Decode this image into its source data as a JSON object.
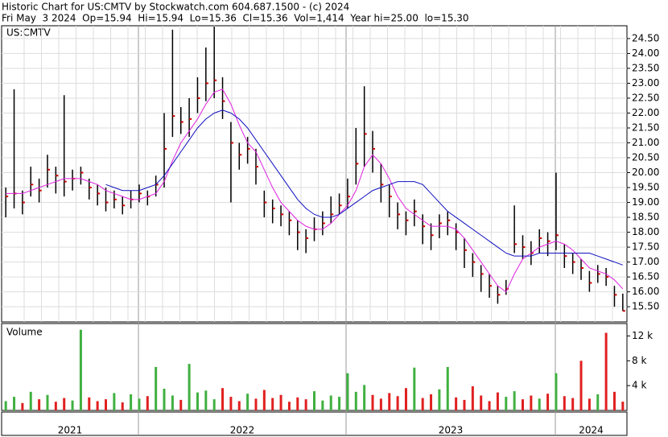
{
  "chart_data": {
    "type": "ohlc",
    "title": "Historic Chart for US:CMTV by Stockwatch.com 604.687.1500 - (c) 2024",
    "subtitle": "Fri May  3 2024  Op=15.94  Hi=15.94  Lo=15.36  Cl=15.36  Vol=1,414  Year hi=25.00  lo=15.30",
    "symbol_label": "US:CMTV",
    "volume_label": "Volume",
    "year_labels": [
      "2021",
      "2022",
      "2023",
      "2024"
    ],
    "ylim": [
      14.99,
      24.93
    ],
    "yticks": [
      {
        "value": 15.5,
        "label": "15.50"
      },
      {
        "value": 16,
        "label": "16.00"
      },
      {
        "value": 16.5,
        "label": "16.50"
      },
      {
        "value": 17,
        "label": "17.00"
      },
      {
        "value": 17.5,
        "label": "17.50"
      },
      {
        "value": 18,
        "label": "18.00"
      },
      {
        "value": 18.5,
        "label": "18.50"
      },
      {
        "value": 19,
        "label": "19.00"
      },
      {
        "value": 19.5,
        "label": "19.50"
      },
      {
        "value": 20,
        "label": "20.00"
      },
      {
        "value": 20.5,
        "label": "20.50"
      },
      {
        "value": 21,
        "label": "21.00"
      },
      {
        "value": 21.5,
        "label": "21.50"
      },
      {
        "value": 22,
        "label": "22.00"
      },
      {
        "value": 22.5,
        "label": "22.50"
      },
      {
        "value": 23,
        "label": "23.00"
      },
      {
        "value": 23.5,
        "label": "23.50"
      },
      {
        "value": 24,
        "label": "24.00"
      },
      {
        "value": 24.5,
        "label": "24.50"
      }
    ],
    "volume_ylim": [
      0,
      14000
    ],
    "volume_yticks": [
      {
        "value": 4000,
        "label": "4 k"
      },
      {
        "value": 8000,
        "label": "8 k"
      },
      {
        "value": 12000,
        "label": "12 k"
      }
    ],
    "grid": true,
    "bar_color": "#000000",
    "close_color": "#d00000",
    "up_color": "#40b040",
    "down_color": "#e02020",
    "high": [
      19.5,
      22.8,
      19.4,
      20.2,
      19.8,
      20.6,
      20.2,
      22.6,
      20.1,
      20.2,
      19.8,
      19.6,
      19.5,
      19.4,
      19.2,
      19.4,
      19.6,
      19.4,
      19.9,
      22.0,
      24.8,
      22.2,
      22.5,
      23.2,
      24.2,
      24.9,
      23.2,
      21.7,
      21.0,
      21.2,
      20.8,
      19.4,
      19.1,
      18.9,
      18.7,
      18.4,
      18.1,
      18.5,
      18.7,
      19.2,
      19.3,
      19.8,
      21.5,
      22.9,
      21.4,
      20.3,
      19.6,
      19.0,
      18.7,
      19.1,
      18.6,
      18.3,
      18.6,
      18.7,
      18.3,
      17.8,
      17.3,
      16.9,
      16.6,
      16.2,
      16.4,
      18.9,
      17.9,
      17.7,
      18.1,
      18.0,
      20.0,
      17.6,
      17.3,
      17.1,
      16.7,
      16.9,
      16.8,
      16.2,
      15.94
    ],
    "low": [
      18.5,
      18.8,
      18.6,
      19.2,
      19.0,
      19.5,
      19.3,
      19.2,
      19.4,
      19.6,
      19.1,
      18.9,
      18.7,
      18.8,
      18.6,
      18.8,
      19.0,
      18.9,
      19.2,
      19.5,
      21.2,
      21.3,
      21.2,
      22.0,
      22.4,
      22.5,
      21.8,
      19.0,
      20.1,
      20.3,
      19.6,
      18.5,
      18.3,
      18.2,
      17.9,
      17.4,
      17.3,
      17.7,
      17.9,
      18.3,
      18.6,
      18.8,
      19.6,
      20.2,
      20.0,
      19.0,
      18.5,
      18.1,
      17.9,
      18.2,
      17.6,
      17.4,
      17.8,
      17.9,
      17.4,
      16.8,
      16.5,
      16.0,
      15.8,
      15.6,
      15.9,
      17.3,
      17.1,
      16.9,
      17.3,
      17.2,
      17.4,
      16.8,
      16.6,
      16.4,
      16.0,
      16.3,
      16.2,
      15.5,
      15.36
    ],
    "close": [
      19.2,
      19.3,
      19.0,
      19.6,
      19.4,
      20.1,
      19.9,
      19.7,
      19.8,
      20.0,
      19.5,
      19.3,
      19.0,
      19.1,
      18.9,
      19.1,
      19.3,
      19.2,
      19.6,
      20.8,
      21.9,
      21.7,
      21.8,
      22.5,
      23.0,
      23.1,
      22.4,
      21.0,
      20.6,
      20.8,
      20.2,
      19.0,
      18.8,
      18.6,
      18.4,
      18.0,
      17.8,
      18.1,
      18.3,
      18.6,
      18.9,
      19.2,
      20.3,
      21.3,
      20.8,
      19.6,
      19.2,
      18.6,
      18.4,
      18.7,
      18.2,
      17.9,
      18.3,
      18.4,
      18.0,
      17.4,
      17.0,
      16.6,
      16.2,
      15.9,
      16.1,
      17.6,
      17.5,
      17.3,
      17.8,
      17.7,
      17.9,
      17.2,
      17.0,
      16.8,
      16.3,
      16.6,
      16.5,
      15.9,
      15.36
    ],
    "series": [
      {
        "color": "#e020e0",
        "values": [
          19.3,
          19.3,
          19.3,
          19.4,
          19.5,
          19.6,
          19.7,
          19.8,
          19.8,
          19.8,
          19.7,
          19.6,
          19.4,
          19.3,
          19.2,
          19.1,
          19.1,
          19.2,
          19.3,
          19.7,
          20.4,
          21.0,
          21.4,
          21.8,
          22.3,
          22.7,
          22.8,
          22.3,
          21.6,
          21.0,
          20.7,
          20.1,
          19.5,
          19.0,
          18.7,
          18.4,
          18.2,
          18.1,
          18.1,
          18.3,
          18.6,
          18.9,
          19.4,
          20.2,
          20.6,
          20.3,
          19.8,
          19.2,
          18.8,
          18.6,
          18.4,
          18.2,
          18.2,
          18.2,
          18.1,
          17.8,
          17.4,
          17.0,
          16.6,
          16.2,
          16.0,
          16.6,
          17.1,
          17.3,
          17.5,
          17.6,
          17.7,
          17.6,
          17.4,
          17.1,
          16.8,
          16.7,
          16.6,
          16.4,
          16.1
        ]
      },
      {
        "color": "#1010c0",
        "values": [
          null,
          null,
          null,
          null,
          null,
          null,
          null,
          null,
          null,
          null,
          null,
          null,
          19.6,
          19.5,
          19.4,
          19.4,
          19.4,
          19.5,
          19.6,
          19.9,
          20.3,
          20.7,
          21.1,
          21.5,
          21.8,
          22.0,
          22.1,
          22.0,
          21.8,
          21.5,
          21.1,
          20.7,
          20.3,
          19.9,
          19.5,
          19.1,
          18.8,
          18.6,
          18.5,
          18.5,
          18.6,
          18.8,
          19.0,
          19.2,
          19.4,
          19.5,
          19.6,
          19.7,
          19.7,
          19.7,
          19.6,
          19.3,
          19.0,
          18.7,
          18.5,
          18.3,
          18.1,
          17.9,
          17.7,
          17.5,
          17.3,
          17.2,
          17.2,
          17.2,
          17.3,
          17.3,
          17.3,
          17.3,
          17.3,
          17.3,
          17.3,
          17.2,
          17.1,
          17.0,
          16.9
        ]
      }
    ],
    "volume": [
      1500,
      2200,
      1200,
      3000,
      1800,
      2500,
      1400,
      2000,
      1600,
      13000,
      2100,
      1500,
      1800,
      2800,
      1300,
      2600,
      1900,
      2300,
      7000,
      3500,
      2400,
      1700,
      7500,
      2900,
      3200,
      1800,
      3600,
      2200,
      1500,
      2700,
      1900,
      3300,
      2000,
      2500,
      1400,
      2100,
      1800,
      3100,
      1600,
      2400,
      2200,
      6000,
      3000,
      4100,
      2500,
      1900,
      2800,
      2300,
      3600,
      6900,
      2000,
      2600,
      3400,
      7000,
      2100,
      1700,
      3900,
      2400,
      1500,
      2900,
      2200,
      3100,
      1800,
      2400,
      1900,
      2700,
      6000,
      2300,
      2000,
      8000,
      1900,
      2600,
      12500,
      3000,
      1414
    ]
  }
}
